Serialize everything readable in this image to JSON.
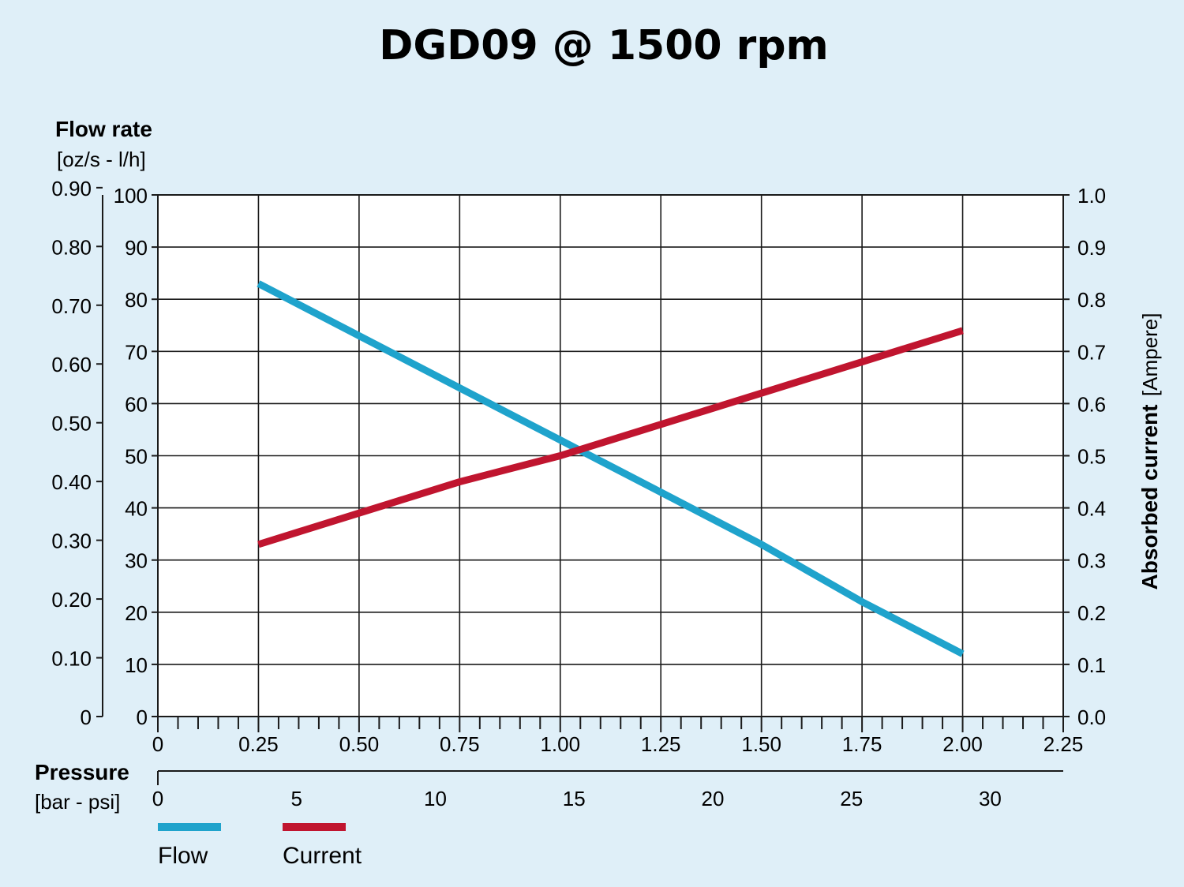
{
  "chart_data": {
    "type": "line",
    "title": "DGD09 @ 1500 rpm",
    "y_left_title": "Flow rate",
    "y_left_units": "[oz/s - l/h]",
    "y_left_ticks_lh": [
      "0",
      "10",
      "20",
      "30",
      "40",
      "50",
      "60",
      "70",
      "80",
      "90",
      "100"
    ],
    "y_left_ticks_ozs": [
      "0",
      "0.10",
      "0.20",
      "0.30",
      "0.40",
      "0.50",
      "0.60",
      "0.70",
      "0.80",
      "0.90"
    ],
    "y_right_title": "Absorbed current",
    "y_right_units": "[Ampere]",
    "y_right_ticks": [
      "0.0",
      "0.1",
      "0.2",
      "0.3",
      "0.4",
      "0.5",
      "0.6",
      "0.7",
      "0.8",
      "0.9",
      "1.0"
    ],
    "x_title": "Pressure",
    "x_units": "[bar - psi]",
    "x_ticks_bar": [
      "0",
      "0.25",
      "0.50",
      "0.75",
      "1.00",
      "1.25",
      "1.50",
      "1.75",
      "2.00",
      "2.25"
    ],
    "x_ticks_psi": [
      "0",
      "5",
      "10",
      "15",
      "20",
      "25",
      "30"
    ],
    "xlim": [
      0,
      2.25
    ],
    "ylim_left": [
      0,
      100
    ],
    "ylim_right": [
      0,
      1.0
    ],
    "grid": true,
    "series": [
      {
        "name": "Flow",
        "axis": "left",
        "color": "#1fa3cc",
        "x": [
          0.25,
          0.5,
          0.75,
          1.0,
          1.25,
          1.5,
          1.75,
          2.0
        ],
        "y": [
          83,
          73,
          63,
          53,
          43,
          33,
          22,
          12
        ]
      },
      {
        "name": "Current",
        "axis": "right",
        "color": "#c0152f",
        "x": [
          0.25,
          0.5,
          0.75,
          1.0,
          1.25,
          1.5,
          1.75,
          2.0
        ],
        "y": [
          0.33,
          0.39,
          0.45,
          0.5,
          0.56,
          0.62,
          0.68,
          0.74
        ]
      }
    ],
    "legend_position": "bottom-left"
  }
}
